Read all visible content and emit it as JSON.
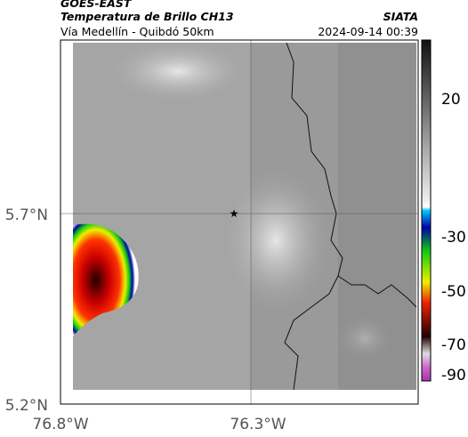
{
  "header": {
    "source": "GOES-EAST",
    "product": "Temperatura de Brillo CH13",
    "org": "SIATA",
    "region": "Vía Medellín - Quibdó 50km",
    "datetime": "2024-09-14 00:39"
  },
  "map": {
    "lat_labels": [
      "5.7°N",
      "5.2°N"
    ],
    "lon_labels": [
      "76.8°W",
      "76.3°W"
    ]
  },
  "colorbar": {
    "ticks": [
      "20",
      "-30",
      "-50",
      "-70",
      "-90"
    ]
  }
}
